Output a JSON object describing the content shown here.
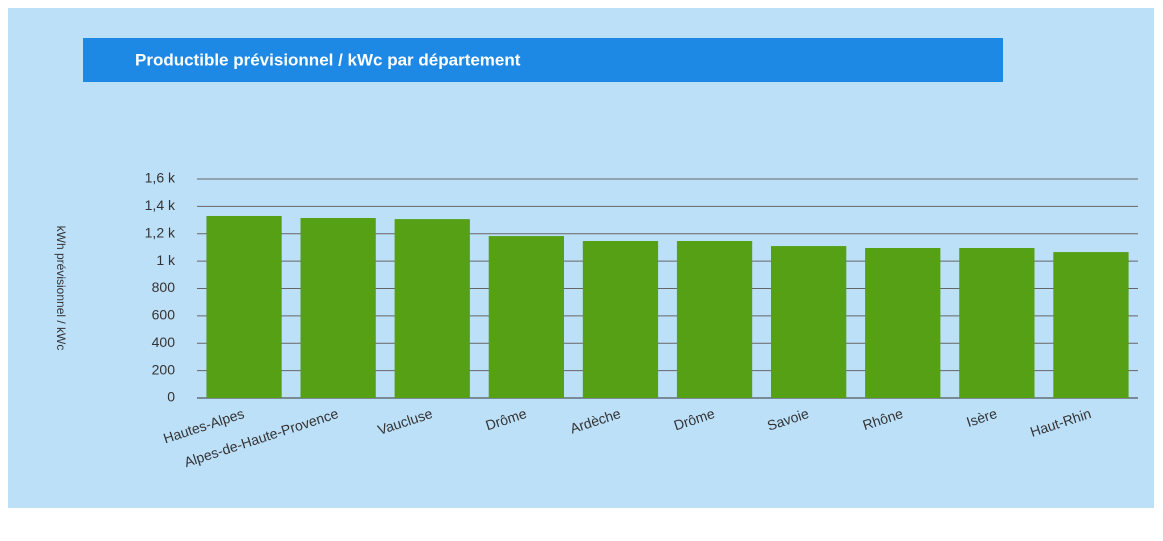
{
  "chart_data": {
    "type": "bar",
    "title": "Productible prévisionnel / kWc par département",
    "y_label": "kWh prévisionnel / kWc",
    "categories": [
      "Hautes-Alpes",
      "Alpes-de-Haute-Provence",
      "Vaucluse",
      "Drôme",
      "Ardèche",
      "Drôme",
      "Savoie",
      "Rhône",
      "Isère",
      "Haut-Rhin"
    ],
    "values": [
      1330,
      1315,
      1307,
      1183,
      1147,
      1147,
      1110,
      1096,
      1096,
      1066
    ],
    "color": "#55a014",
    "ylim": [
      0,
      1600
    ],
    "yticks": [
      0,
      200,
      400,
      600,
      800,
      {
        "value": 1000,
        "label": "1 k"
      },
      {
        "value": 1200,
        "label": "1,2 k"
      },
      {
        "value": 1400,
        "label": "1,4 k"
      },
      {
        "value": 1600,
        "label": "1,6 k"
      }
    ],
    "grid": true
  }
}
